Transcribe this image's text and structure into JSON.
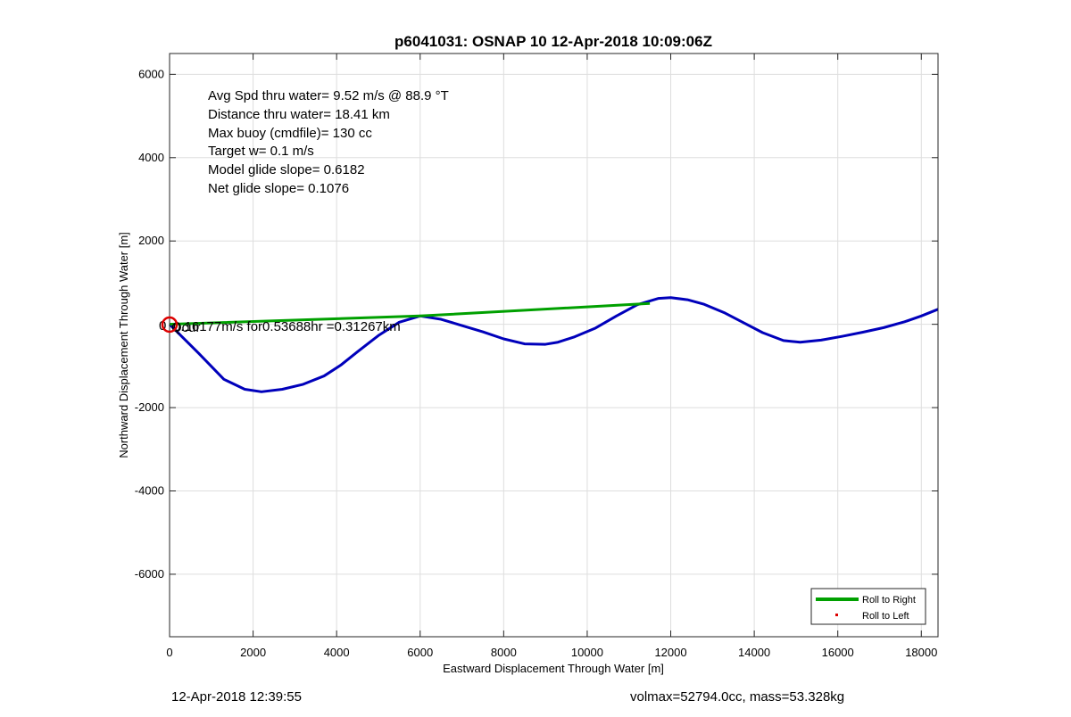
{
  "chart_data": {
    "type": "line",
    "title": "p6041031: OSNAP 10 12-Apr-2018 10:09:06Z",
    "xlabel": "Eastward Displacement Through Water [m]",
    "ylabel": "Northward Displacement Through Water [m]",
    "xlim": [
      0,
      18400
    ],
    "ylim": [
      -7500,
      6500
    ],
    "xticks": [
      0,
      2000,
      4000,
      6000,
      8000,
      10000,
      12000,
      14000,
      16000,
      18000
    ],
    "yticks": [
      6000,
      4000,
      2000,
      0,
      -2000,
      -4000,
      -6000
    ],
    "grid": true,
    "legend": {
      "placement": "bottom-right",
      "entries": [
        "Roll to Right",
        "Roll to Left"
      ]
    },
    "series": [
      {
        "name": "Roll to Right",
        "color": "#00a000",
        "x": [
          0,
          6000,
          11500
        ],
        "y": [
          0,
          200,
          500
        ]
      },
      {
        "color": "#0000bb",
        "x": [
          0,
          700,
          1300,
          1800,
          2200,
          2700,
          3200,
          3700,
          4100,
          4500,
          5000,
          5500,
          6000,
          6500,
          7000,
          7500,
          8000,
          8500,
          9000,
          9300,
          9700,
          10200,
          10700,
          11200,
          11700,
          12000,
          12400,
          12800,
          13300,
          13700,
          14200,
          14700,
          15100,
          15600,
          16100,
          16600,
          17100,
          17600,
          18000,
          18400
        ],
        "y": [
          0,
          -700,
          -1320,
          -1560,
          -1620,
          -1560,
          -1440,
          -1240,
          -980,
          -660,
          -270,
          50,
          200,
          120,
          -30,
          -180,
          -350,
          -470,
          -480,
          -430,
          -300,
          -90,
          200,
          470,
          620,
          640,
          590,
          480,
          270,
          60,
          -200,
          -390,
          -430,
          -380,
          -290,
          -190,
          -80,
          60,
          200,
          360
        ]
      },
      {
        "name": "Roll to Left",
        "color": "#dd0000",
        "x": [],
        "y": []
      }
    ],
    "annotations": [
      "Avg Spd thru water=  9.52 m/s @  88.9 °T",
      "Distance thru water= 18.41 km",
      "Max buoy (cmdfile)= 130 cc",
      "Target w= 0.1 m/s",
      "Model glide slope= 0.6182",
      "Net glide slope= 0.1076"
    ],
    "overlap_text": {
      "a": "0",
      "b": "0.16177m/s for0.53688hr =0.31267km",
      "c": "Qcur"
    },
    "start_marker_color": "#dd0000"
  },
  "footer": {
    "left": "12-Apr-2018 12:39:55",
    "right": "volmax=52794.0cc, mass=53.328kg"
  }
}
